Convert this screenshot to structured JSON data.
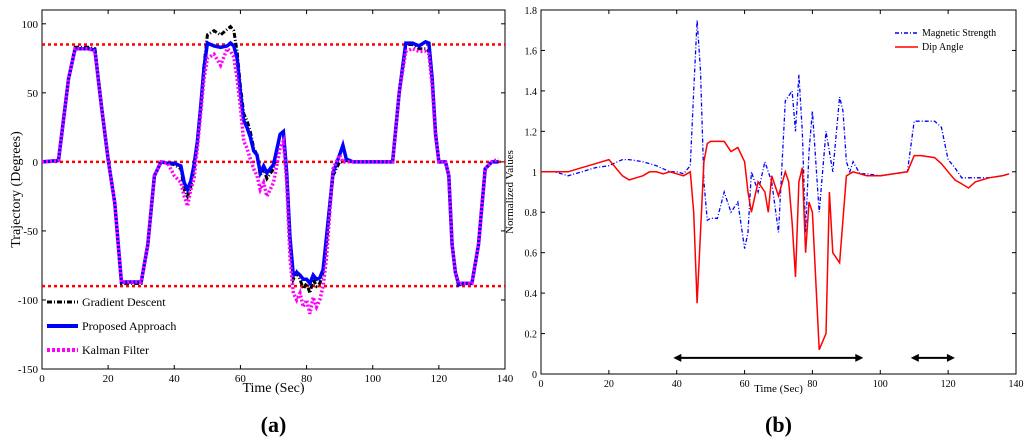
{
  "chart_data": [
    {
      "type": "line",
      "panel_label": "(a)",
      "xlabel": "Time (Sec)",
      "ylabel": "Trajectory (Degrees)",
      "xlim": [
        0,
        140
      ],
      "ylim": [
        -150,
        110
      ],
      "xticks": [
        0,
        20,
        40,
        60,
        80,
        100,
        120,
        140
      ],
      "yticks": [
        -150,
        -100,
        -50,
        0,
        50,
        100
      ],
      "grid": false,
      "legend_position": "bottom-left",
      "reference_lines": [
        85,
        0,
        -90
      ],
      "series": [
        {
          "name": "Gradient Descent",
          "color": "#000000",
          "style": "dash-dot",
          "x": [
            0,
            5,
            8,
            10,
            14,
            16,
            18,
            20,
            22,
            24,
            27,
            30,
            32,
            34,
            36,
            38,
            40,
            42,
            43,
            44,
            45,
            46,
            47,
            48,
            49,
            50,
            52,
            54,
            56,
            57,
            58,
            59,
            60,
            61,
            62,
            63,
            64,
            65,
            66,
            67,
            68,
            70,
            72,
            73,
            74,
            75,
            76,
            77,
            78,
            79,
            80,
            81,
            82,
            83,
            84,
            85,
            86,
            88,
            90,
            91,
            92,
            94,
            96,
            98,
            100,
            102,
            104,
            106,
            108,
            110,
            112,
            114,
            116,
            117,
            118,
            119,
            120,
            121,
            122,
            123,
            124,
            125,
            126,
            127,
            128,
            130,
            132,
            134,
            136,
            138
          ],
          "y": [
            0,
            1,
            60,
            83,
            83,
            82,
            40,
            2,
            -30,
            -88,
            -88,
            -88,
            -60,
            -10,
            0,
            -1,
            -2,
            -5,
            -20,
            -25,
            -18,
            -5,
            15,
            40,
            70,
            92,
            95,
            92,
            96,
            98,
            95,
            80,
            55,
            35,
            30,
            22,
            10,
            5,
            -10,
            -5,
            -12,
            -5,
            20,
            22,
            -10,
            -60,
            -85,
            -80,
            -85,
            -92,
            -88,
            -95,
            -85,
            -90,
            -88,
            -80,
            -60,
            -10,
            0,
            0,
            1,
            0,
            0,
            0,
            0,
            0,
            0,
            0,
            50,
            85,
            85,
            82,
            82,
            80,
            60,
            20,
            0,
            0,
            0,
            -10,
            -60,
            -80,
            -90,
            -88,
            -88,
            -88,
            -60,
            -5,
            0,
            0
          ]
        },
        {
          "name": "Proposed Approach",
          "color": "#0000ff",
          "style": "solid",
          "x": [
            0,
            5,
            8,
            10,
            14,
            16,
            18,
            20,
            22,
            24,
            27,
            30,
            32,
            34,
            36,
            38,
            40,
            42,
            43,
            44,
            45,
            46,
            47,
            48,
            49,
            50,
            52,
            54,
            56,
            57,
            58,
            59,
            60,
            61,
            62,
            63,
            64,
            65,
            66,
            67,
            68,
            70,
            72,
            73,
            74,
            75,
            76,
            77,
            78,
            79,
            80,
            81,
            82,
            83,
            84,
            85,
            86,
            88,
            90,
            91,
            92,
            94,
            96,
            98,
            100,
            102,
            104,
            106,
            108,
            110,
            112,
            114,
            116,
            117,
            118,
            119,
            120,
            121,
            122,
            123,
            124,
            125,
            126,
            127,
            128,
            130,
            132,
            134,
            136,
            138
          ],
          "y": [
            0,
            1,
            60,
            82,
            82,
            81,
            40,
            2,
            -30,
            -87,
            -87,
            -87,
            -60,
            -10,
            0,
            -1,
            -1,
            -3,
            -15,
            -20,
            -14,
            -2,
            15,
            40,
            68,
            86,
            84,
            83,
            84,
            86,
            84,
            75,
            50,
            30,
            25,
            18,
            8,
            5,
            -8,
            -3,
            -8,
            -2,
            20,
            22,
            -8,
            -55,
            -82,
            -80,
            -82,
            -85,
            -85,
            -88,
            -82,
            -85,
            -84,
            -78,
            -55,
            -8,
            5,
            12,
            2,
            0,
            0,
            0,
            0,
            0,
            0,
            0,
            50,
            86,
            86,
            84,
            87,
            86,
            60,
            20,
            0,
            0,
            0,
            -10,
            -60,
            -80,
            -89,
            -88,
            -88,
            -88,
            -60,
            -5,
            0,
            0
          ]
        },
        {
          "name": "Kalman Filter",
          "color": "#ff00ff",
          "style": "dotted",
          "x": [
            0,
            5,
            8,
            10,
            14,
            16,
            18,
            20,
            22,
            24,
            27,
            30,
            32,
            34,
            36,
            38,
            40,
            42,
            43,
            44,
            45,
            46,
            47,
            48,
            49,
            50,
            52,
            54,
            56,
            57,
            58,
            59,
            60,
            61,
            62,
            63,
            64,
            65,
            66,
            67,
            68,
            70,
            72,
            73,
            74,
            75,
            76,
            77,
            78,
            79,
            80,
            81,
            82,
            83,
            84,
            85,
            86,
            88,
            90,
            91,
            92,
            94,
            96,
            98,
            100,
            102,
            104,
            106,
            108,
            110,
            112,
            114,
            116,
            117,
            118,
            119,
            120,
            121,
            122,
            123,
            124,
            125,
            126,
            127,
            128,
            130,
            132,
            134,
            136,
            138
          ],
          "y": [
            0,
            1,
            60,
            82,
            82,
            80,
            40,
            2,
            -30,
            -87,
            -87,
            -87,
            -60,
            -10,
            0,
            -1,
            -10,
            -15,
            -25,
            -32,
            -20,
            -12,
            10,
            35,
            60,
            75,
            78,
            70,
            82,
            80,
            76,
            60,
            40,
            15,
            10,
            2,
            -5,
            -10,
            -20,
            -15,
            -25,
            -15,
            10,
            15,
            -15,
            -70,
            -95,
            -100,
            -95,
            -105,
            -100,
            -110,
            -98,
            -105,
            -100,
            -90,
            -70,
            -5,
            5,
            0,
            0,
            0,
            0,
            0,
            0,
            0,
            0,
            0,
            50,
            80,
            82,
            80,
            80,
            78,
            55,
            18,
            0,
            0,
            0,
            -10,
            -60,
            -80,
            -88,
            -88,
            -88,
            -88,
            -60,
            -5,
            0,
            2
          ]
        }
      ]
    },
    {
      "type": "line",
      "panel_label": "(b)",
      "xlabel": "Time (Sec)",
      "ylabel": "Normalized Values",
      "xlim": [
        0,
        140
      ],
      "ylim": [
        0,
        1.8
      ],
      "xticks": [
        0,
        20,
        40,
        60,
        80,
        100,
        120,
        140
      ],
      "yticks": [
        0,
        0.2,
        0.4,
        0.6,
        0.8,
        1,
        1.2,
        1.4,
        1.6,
        1.8
      ],
      "grid": false,
      "legend_position": "top-right",
      "annotations": [
        {
          "type": "double-arrow",
          "x_start": 39,
          "x_end": 95,
          "y": 0.08
        },
        {
          "type": "double-arrow",
          "x_start": 109,
          "x_end": 122,
          "y": 0.08
        }
      ],
      "series": [
        {
          "name": "Magnetic Strength",
          "color": "#0000ff",
          "style": "dash-dot",
          "x": [
            0,
            4,
            8,
            12,
            16,
            20,
            24,
            26,
            30,
            34,
            38,
            40,
            42,
            44,
            45,
            46,
            47,
            48,
            49,
            50,
            52,
            54,
            56,
            58,
            60,
            61,
            62,
            64,
            66,
            68,
            70,
            72,
            74,
            75,
            76,
            77,
            78,
            79,
            80,
            81,
            82,
            84,
            85,
            86,
            88,
            89,
            90,
            91,
            92,
            94,
            96,
            100,
            104,
            108,
            110,
            112,
            116,
            118,
            120,
            122,
            124,
            128,
            132,
            136,
            138
          ],
          "y": [
            1,
            1,
            0.98,
            1.0,
            1.02,
            1.03,
            1.06,
            1.06,
            1.05,
            1.03,
            1.0,
            1.0,
            0.99,
            1.03,
            1.4,
            1.75,
            1.5,
            0.95,
            0.76,
            0.77,
            0.77,
            0.9,
            0.8,
            0.85,
            0.62,
            0.7,
            1.0,
            0.9,
            1.05,
            0.95,
            0.7,
            1.35,
            1.4,
            1.2,
            1.48,
            1.2,
            0.7,
            1.1,
            1.3,
            1.05,
            0.8,
            1.2,
            1.1,
            1.0,
            1.37,
            1.3,
            1.05,
            1.0,
            1.05,
            0.99,
            0.99,
            0.98,
            0.99,
            1.0,
            1.25,
            1.25,
            1.25,
            1.22,
            1.06,
            1.02,
            0.97,
            0.97,
            0.97,
            0.98,
            0.99
          ]
        },
        {
          "name": "Dip Angle",
          "color": "#ff0000",
          "style": "solid",
          "x": [
            0,
            4,
            8,
            12,
            16,
            20,
            24,
            26,
            30,
            32,
            34,
            36,
            38,
            40,
            42,
            44,
            45,
            46,
            47,
            48,
            49,
            50,
            52,
            54,
            56,
            58,
            60,
            61,
            62,
            64,
            66,
            67,
            68,
            70,
            72,
            73,
            74,
            75,
            76,
            77,
            78,
            79,
            80,
            82,
            84,
            85,
            86,
            88,
            90,
            92,
            94,
            96,
            100,
            104,
            108,
            110,
            112,
            116,
            118,
            120,
            122,
            124,
            126,
            128,
            132,
            136,
            138
          ],
          "y": [
            1,
            1,
            1.0,
            1.02,
            1.04,
            1.06,
            0.98,
            0.96,
            0.98,
            1.0,
            1.0,
            0.99,
            1.0,
            0.99,
            0.98,
            1.0,
            0.8,
            0.35,
            0.7,
            1.05,
            1.14,
            1.15,
            1.15,
            1.15,
            1.1,
            1.12,
            1.05,
            0.9,
            0.8,
            0.95,
            0.9,
            0.8,
            0.98,
            0.88,
            1.0,
            0.95,
            0.75,
            0.48,
            0.95,
            1.02,
            0.6,
            0.85,
            0.8,
            0.12,
            0.2,
            0.9,
            0.6,
            0.55,
            0.98,
            1.0,
            0.99,
            0.98,
            0.98,
            0.99,
            1.0,
            1.08,
            1.08,
            1.07,
            1.04,
            1.0,
            0.96,
            0.94,
            0.92,
            0.95,
            0.97,
            0.98,
            0.99
          ]
        }
      ]
    }
  ]
}
